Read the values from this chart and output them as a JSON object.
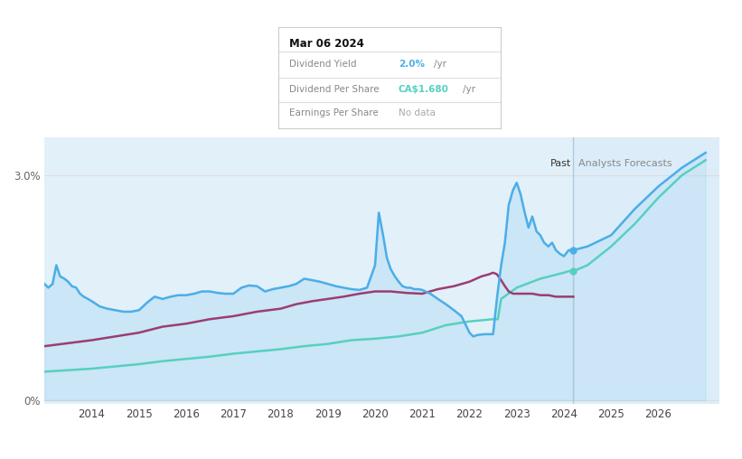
{
  "bg_color": "#ffffff",
  "plot_bg_color": "#ffffff",
  "forecast_bg_color": "#d6eaf8",
  "past_bg_color": "#ddeef8",
  "x_min": 2013.0,
  "x_max": 2027.3,
  "y_min": -0.05,
  "y_max": 3.5,
  "past_cutoff": 2024.2,
  "ytick_positions": [
    0.0,
    3.0
  ],
  "ytick_labels": [
    "0%",
    "3.0%"
  ],
  "xtick_years": [
    2014,
    2015,
    2016,
    2017,
    2018,
    2019,
    2020,
    2021,
    2022,
    2023,
    2024,
    2025,
    2026
  ],
  "div_yield_color": "#4baee8",
  "div_per_share_color": "#56d0c0",
  "earnings_per_share_color": "#9b3d72",
  "tooltip_date": "Mar 06 2024",
  "tooltip_dy_val": "2.0%",
  "tooltip_dy_color": "#4baee8",
  "tooltip_dps_val": "CA$1.680",
  "tooltip_dps_color": "#56d0c0",
  "tooltip_eps_val": "No data",
  "tooltip_eps_color": "#aaaaaa",
  "legend_items": [
    "Dividend Yield",
    "Dividend Per Share",
    "Earnings Per Share"
  ],
  "legend_colors": [
    "#4baee8",
    "#56d0c0",
    "#9b3d72"
  ],
  "div_yield_data": [
    [
      2013.0,
      1.55
    ],
    [
      2013.08,
      1.5
    ],
    [
      2013.17,
      1.55
    ],
    [
      2013.25,
      1.8
    ],
    [
      2013.33,
      1.65
    ],
    [
      2013.42,
      1.62
    ],
    [
      2013.5,
      1.58
    ],
    [
      2013.58,
      1.52
    ],
    [
      2013.67,
      1.5
    ],
    [
      2013.75,
      1.42
    ],
    [
      2013.83,
      1.38
    ],
    [
      2013.92,
      1.35
    ],
    [
      2014.0,
      1.32
    ],
    [
      2014.17,
      1.25
    ],
    [
      2014.33,
      1.22
    ],
    [
      2014.5,
      1.2
    ],
    [
      2014.67,
      1.18
    ],
    [
      2014.83,
      1.18
    ],
    [
      2015.0,
      1.2
    ],
    [
      2015.17,
      1.3
    ],
    [
      2015.33,
      1.38
    ],
    [
      2015.5,
      1.35
    ],
    [
      2015.67,
      1.38
    ],
    [
      2015.83,
      1.4
    ],
    [
      2016.0,
      1.4
    ],
    [
      2016.17,
      1.42
    ],
    [
      2016.33,
      1.45
    ],
    [
      2016.5,
      1.45
    ],
    [
      2016.67,
      1.43
    ],
    [
      2016.83,
      1.42
    ],
    [
      2017.0,
      1.42
    ],
    [
      2017.17,
      1.5
    ],
    [
      2017.33,
      1.53
    ],
    [
      2017.5,
      1.52
    ],
    [
      2017.67,
      1.45
    ],
    [
      2017.83,
      1.48
    ],
    [
      2018.0,
      1.5
    ],
    [
      2018.17,
      1.52
    ],
    [
      2018.33,
      1.55
    ],
    [
      2018.5,
      1.62
    ],
    [
      2018.67,
      1.6
    ],
    [
      2018.83,
      1.58
    ],
    [
      2019.0,
      1.55
    ],
    [
      2019.17,
      1.52
    ],
    [
      2019.33,
      1.5
    ],
    [
      2019.5,
      1.48
    ],
    [
      2019.67,
      1.47
    ],
    [
      2019.83,
      1.5
    ],
    [
      2020.0,
      1.8
    ],
    [
      2020.08,
      2.5
    ],
    [
      2020.17,
      2.2
    ],
    [
      2020.25,
      1.9
    ],
    [
      2020.33,
      1.75
    ],
    [
      2020.42,
      1.65
    ],
    [
      2020.5,
      1.58
    ],
    [
      2020.58,
      1.52
    ],
    [
      2020.67,
      1.5
    ],
    [
      2020.75,
      1.5
    ],
    [
      2020.83,
      1.48
    ],
    [
      2020.92,
      1.48
    ],
    [
      2021.0,
      1.47
    ],
    [
      2021.17,
      1.42
    ],
    [
      2021.33,
      1.35
    ],
    [
      2021.5,
      1.28
    ],
    [
      2021.67,
      1.2
    ],
    [
      2021.83,
      1.12
    ],
    [
      2022.0,
      0.9
    ],
    [
      2022.08,
      0.85
    ],
    [
      2022.17,
      0.87
    ],
    [
      2022.33,
      0.88
    ],
    [
      2022.42,
      0.88
    ],
    [
      2022.5,
      0.88
    ],
    [
      2022.58,
      1.35
    ],
    [
      2022.67,
      1.8
    ],
    [
      2022.75,
      2.1
    ],
    [
      2022.83,
      2.6
    ],
    [
      2022.92,
      2.8
    ],
    [
      2023.0,
      2.9
    ],
    [
      2023.08,
      2.75
    ],
    [
      2023.17,
      2.5
    ],
    [
      2023.25,
      2.3
    ],
    [
      2023.33,
      2.45
    ],
    [
      2023.42,
      2.25
    ],
    [
      2023.5,
      2.2
    ],
    [
      2023.58,
      2.1
    ],
    [
      2023.67,
      2.05
    ],
    [
      2023.75,
      2.1
    ],
    [
      2023.83,
      2.0
    ],
    [
      2023.92,
      1.95
    ],
    [
      2024.0,
      1.92
    ],
    [
      2024.1,
      2.0
    ],
    [
      2024.2,
      2.0
    ]
  ],
  "div_yield_forecast": [
    [
      2024.2,
      2.0
    ],
    [
      2024.5,
      2.05
    ],
    [
      2025.0,
      2.2
    ],
    [
      2025.5,
      2.55
    ],
    [
      2026.0,
      2.85
    ],
    [
      2026.5,
      3.1
    ],
    [
      2027.0,
      3.3
    ]
  ],
  "div_per_share_data": [
    [
      2013.0,
      0.38
    ],
    [
      2013.5,
      0.4
    ],
    [
      2014.0,
      0.42
    ],
    [
      2014.5,
      0.45
    ],
    [
      2015.0,
      0.48
    ],
    [
      2015.5,
      0.52
    ],
    [
      2016.0,
      0.55
    ],
    [
      2016.5,
      0.58
    ],
    [
      2017.0,
      0.62
    ],
    [
      2017.5,
      0.65
    ],
    [
      2018.0,
      0.68
    ],
    [
      2018.5,
      0.72
    ],
    [
      2019.0,
      0.75
    ],
    [
      2019.5,
      0.8
    ],
    [
      2020.0,
      0.82
    ],
    [
      2020.5,
      0.85
    ],
    [
      2021.0,
      0.9
    ],
    [
      2021.5,
      1.0
    ],
    [
      2022.0,
      1.05
    ],
    [
      2022.5,
      1.08
    ],
    [
      2022.6,
      1.08
    ],
    [
      2022.67,
      1.35
    ],
    [
      2023.0,
      1.5
    ],
    [
      2023.5,
      1.62
    ],
    [
      2024.0,
      1.7
    ],
    [
      2024.1,
      1.72
    ],
    [
      2024.2,
      1.72
    ]
  ],
  "div_per_share_forecast": [
    [
      2024.2,
      1.72
    ],
    [
      2024.5,
      1.8
    ],
    [
      2025.0,
      2.05
    ],
    [
      2025.5,
      2.35
    ],
    [
      2026.0,
      2.7
    ],
    [
      2026.5,
      3.0
    ],
    [
      2027.0,
      3.2
    ]
  ],
  "earnings_per_share_data": [
    [
      2013.0,
      0.72
    ],
    [
      2013.5,
      0.76
    ],
    [
      2014.0,
      0.8
    ],
    [
      2014.5,
      0.85
    ],
    [
      2015.0,
      0.9
    ],
    [
      2015.5,
      0.98
    ],
    [
      2016.0,
      1.02
    ],
    [
      2016.5,
      1.08
    ],
    [
      2017.0,
      1.12
    ],
    [
      2017.5,
      1.18
    ],
    [
      2018.0,
      1.22
    ],
    [
      2018.33,
      1.28
    ],
    [
      2018.5,
      1.3
    ],
    [
      2018.67,
      1.32
    ],
    [
      2019.0,
      1.35
    ],
    [
      2019.33,
      1.38
    ],
    [
      2019.67,
      1.42
    ],
    [
      2020.0,
      1.45
    ],
    [
      2020.33,
      1.45
    ],
    [
      2020.67,
      1.43
    ],
    [
      2021.0,
      1.42
    ],
    [
      2021.33,
      1.48
    ],
    [
      2021.67,
      1.52
    ],
    [
      2022.0,
      1.58
    ],
    [
      2022.25,
      1.65
    ],
    [
      2022.42,
      1.68
    ],
    [
      2022.5,
      1.7
    ],
    [
      2022.58,
      1.68
    ],
    [
      2022.67,
      1.6
    ],
    [
      2022.75,
      1.52
    ],
    [
      2022.83,
      1.45
    ],
    [
      2022.92,
      1.42
    ],
    [
      2023.0,
      1.42
    ],
    [
      2023.17,
      1.42
    ],
    [
      2023.33,
      1.42
    ],
    [
      2023.5,
      1.4
    ],
    [
      2023.67,
      1.4
    ],
    [
      2023.83,
      1.38
    ],
    [
      2024.0,
      1.38
    ],
    [
      2024.1,
      1.38
    ],
    [
      2024.2,
      1.38
    ]
  ]
}
